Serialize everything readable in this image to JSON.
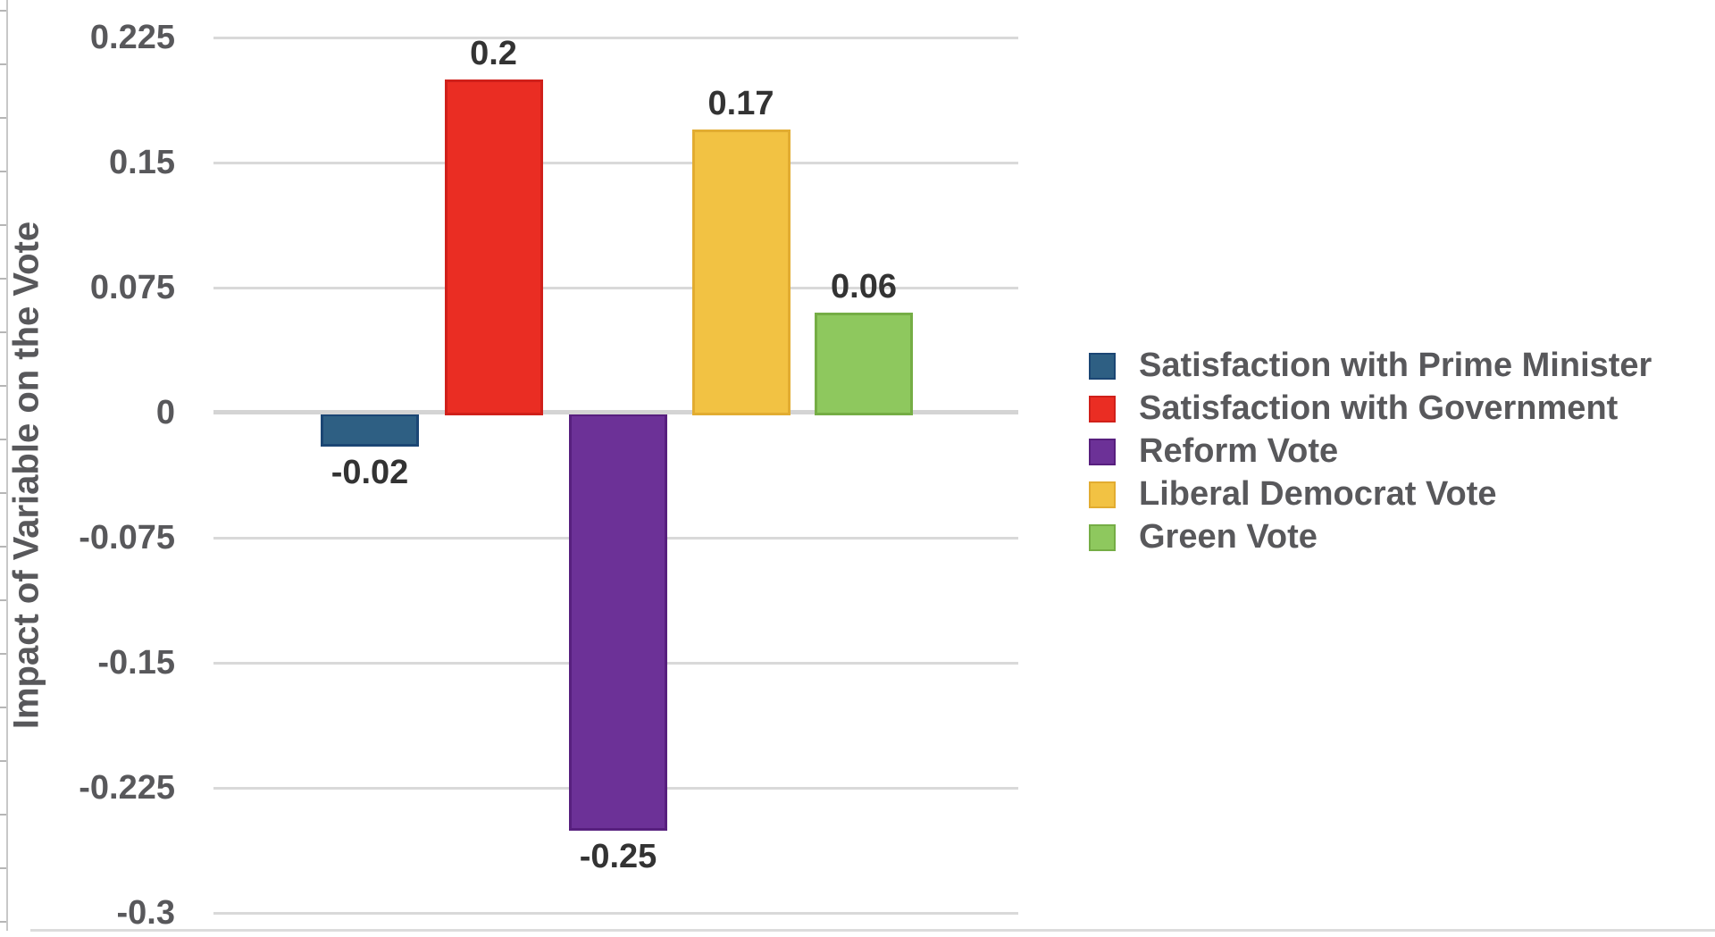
{
  "page": {
    "background": "#ffffff"
  },
  "colors": {
    "gridline": "#d9d9d9",
    "zero_line": "#d4d4d4",
    "tick_label": "#58585b",
    "data_label": "#333333",
    "legend_text": "#58585b",
    "axis_rail": "#c8c8c8"
  },
  "chart_data": {
    "type": "bar",
    "title": "",
    "xlabel": "",
    "ylabel": "Impact of Variable on the Vote",
    "grid": true,
    "legend_position": "right",
    "axis_range": [
      -0.3,
      0.225
    ],
    "y_ticks": [
      0.225,
      0.15,
      0.075,
      0,
      -0.075,
      -0.15,
      -0.225,
      -0.3
    ],
    "y_tick_labels": [
      "0.225",
      "0.15",
      "0.075",
      "0",
      "-0.075",
      "-0.15",
      "-0.225",
      "-0.3"
    ],
    "categories": [
      "Satisfaction with Prime Minister",
      "Satisfaction with Government",
      "Reform Vote",
      "Liberal Democrat Vote",
      "Green Vote"
    ],
    "values": [
      -0.02,
      0.2,
      -0.25,
      0.17,
      0.06
    ],
    "value_labels": [
      "-0.02",
      "0.2",
      "-0.25",
      "0.17",
      "0.06"
    ],
    "series": [
      {
        "name": "Satisfaction with Prime Minister",
        "value": -0.02,
        "label": "-0.02",
        "color": "#2e5f83",
        "stroke": "#1b4674"
      },
      {
        "name": "Satisfaction with Government",
        "value": 0.2,
        "label": "0.2",
        "color": "#ea2d23",
        "stroke": "#d0201a"
      },
      {
        "name": "Reform Vote",
        "value": -0.25,
        "label": "-0.25",
        "color": "#6c3197",
        "stroke": "#571f7e"
      },
      {
        "name": "Liberal Democrat Vote",
        "value": 0.17,
        "label": "0.17",
        "color": "#f2c243",
        "stroke": "#e2ac31"
      },
      {
        "name": "Green Vote",
        "value": 0.06,
        "label": "0.06",
        "color": "#8ec85e",
        "stroke": "#75ad45"
      }
    ],
    "legend": {
      "items": [
        {
          "label": "Satisfaction with Prime Minister",
          "color": "#2e5f83",
          "stroke": "#1b4674"
        },
        {
          "label": "Satisfaction with Government",
          "color": "#ea2d23",
          "stroke": "#d0201a"
        },
        {
          "label": "Reform Vote",
          "color": "#6c3197",
          "stroke": "#571f7e"
        },
        {
          "label": "Liberal Democrat Vote",
          "color": "#f2c243",
          "stroke": "#e2ac31"
        },
        {
          "label": "Green Vote",
          "color": "#8ec85e",
          "stroke": "#75ad45"
        }
      ]
    }
  }
}
